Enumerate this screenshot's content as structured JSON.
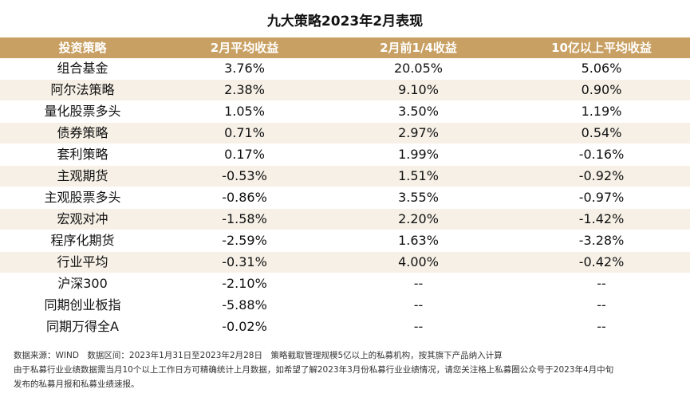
{
  "title": "九大策略2023年2月表现",
  "table": {
    "headers": [
      "投资策略",
      "2月平均收益",
      "2月前1/4收益",
      "10亿以上平均收益"
    ],
    "rows": [
      [
        "组合基金",
        "3.76%",
        "20.05%",
        "5.06%"
      ],
      [
        "阿尔法策略",
        "2.38%",
        "9.10%",
        "0.90%"
      ],
      [
        "量化股票多头",
        "1.05%",
        "3.50%",
        "1.19%"
      ],
      [
        "债券策略",
        "0.71%",
        "2.97%",
        "0.54%"
      ],
      [
        "套利策略",
        "0.17%",
        "1.99%",
        "-0.16%"
      ],
      [
        "主观期货",
        "-0.53%",
        "1.51%",
        "-0.92%"
      ],
      [
        "主观股票多头",
        "-0.86%",
        "3.55%",
        "-0.97%"
      ],
      [
        "宏观对冲",
        "-1.58%",
        "2.20%",
        "-1.42%"
      ],
      [
        "程序化期货",
        "-2.59%",
        "1.63%",
        "-3.28%"
      ],
      [
        "行业平均",
        "-0.31%",
        "4.00%",
        "-0.42%"
      ],
      [
        "沪深300",
        "-2.10%",
        "--",
        "--"
      ],
      [
        "同期创业板指",
        "-5.88%",
        "--",
        "--"
      ],
      [
        "同期万得全A",
        "-0.02%",
        "--",
        "--"
      ]
    ]
  },
  "notes": [
    "数据来源：WIND　数据区间：2023年1月31日至2023年2月28日　策略截取管理规模5亿以上的私募机构，按其旗下产品纳入计算",
    "由于私募行业业绩数据需当月10个以上工作日方可精确统计上月数据，如希望了解2023年3月份私募行业业绩情况，请您关注格上私募圈公众号于2023年4月中旬",
    "发布的私募月报和私募业绩速报。"
  ],
  "colors": {
    "header_bg": "#c9a063",
    "row_alt_bg": "#f6f0e6"
  }
}
